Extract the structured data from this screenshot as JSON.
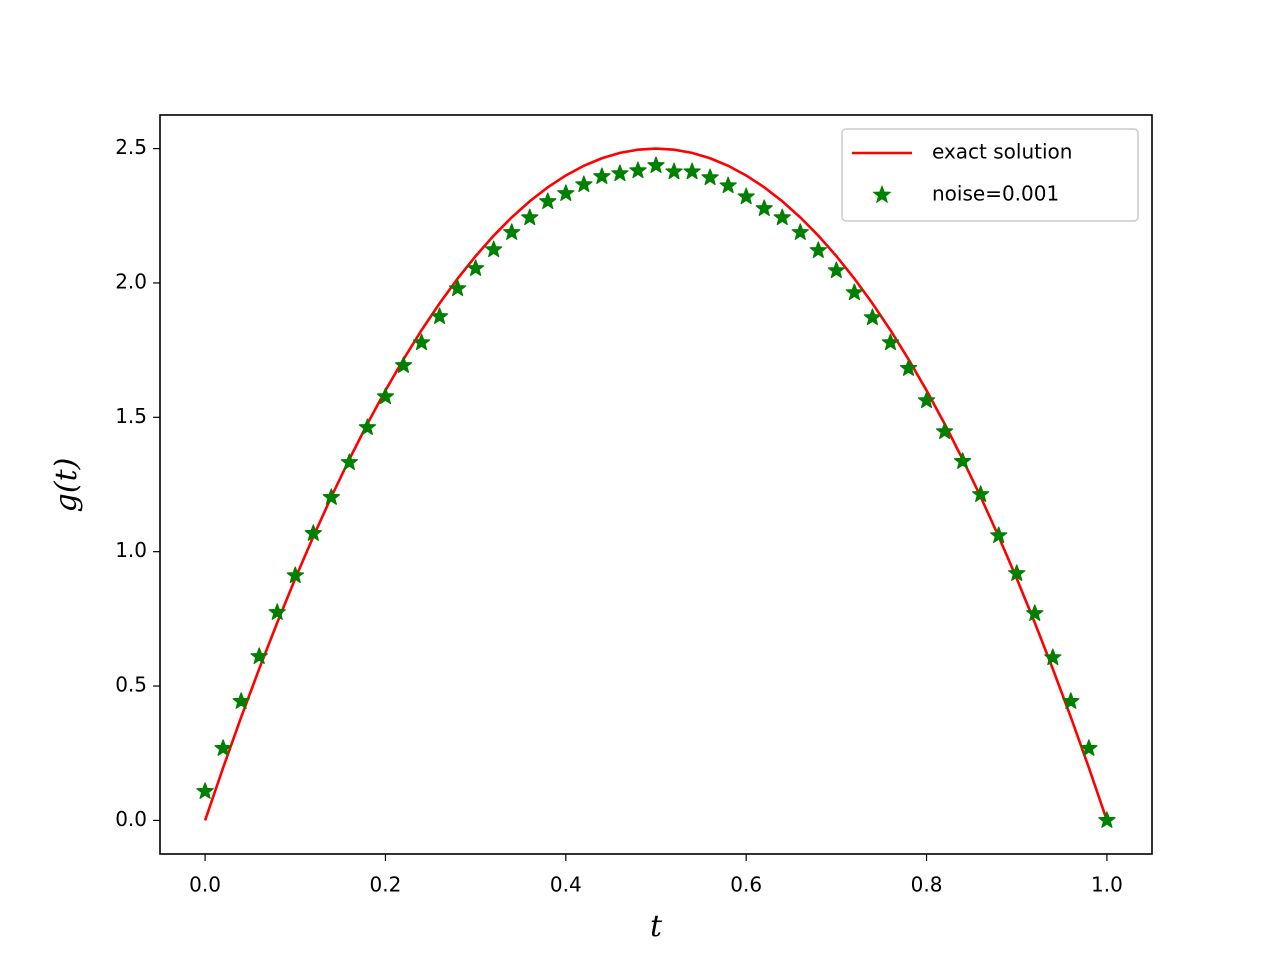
{
  "chart_data": {
    "type": "line",
    "x_label": "t",
    "y_label": "g(t)",
    "x": [
      0,
      0.02,
      0.04,
      0.06,
      0.08,
      0.1,
      0.12,
      0.14,
      0.16,
      0.18,
      0.2,
      0.22,
      0.24,
      0.26,
      0.28,
      0.3,
      0.32,
      0.34,
      0.36,
      0.38,
      0.4,
      0.42,
      0.44,
      0.46,
      0.48,
      0.5,
      0.52,
      0.54,
      0.56,
      0.58,
      0.6,
      0.62,
      0.64,
      0.66,
      0.68,
      0.7,
      0.72,
      0.74,
      0.76,
      0.78,
      0.8,
      0.82,
      0.84,
      0.86,
      0.88,
      0.9,
      0.92,
      0.94,
      0.96,
      0.98,
      1.0
    ],
    "series": [
      {
        "name": "exact solution",
        "color": "#ff0000",
        "style": "line",
        "values": [
          0,
          0.196,
          0.384,
          0.564,
          0.736,
          0.9,
          1.056,
          1.204,
          1.344,
          1.476,
          1.6,
          1.716,
          1.824,
          1.924,
          2.016,
          2.1,
          2.176,
          2.244,
          2.304,
          2.356,
          2.4,
          2.436,
          2.464,
          2.484,
          2.496,
          2.5,
          2.496,
          2.484,
          2.464,
          2.436,
          2.4,
          2.356,
          2.304,
          2.244,
          2.176,
          2.1,
          2.016,
          1.924,
          1.824,
          1.716,
          1.6,
          1.476,
          1.344,
          1.204,
          1.056,
          0.9,
          0.736,
          0.564,
          0.384,
          0.196,
          0
        ]
      },
      {
        "name": "noise=0.001",
        "color": "#008000",
        "style": "star",
        "values": [
          0.108,
          0.268,
          0.443,
          0.61,
          0.774,
          0.911,
          1.068,
          1.202,
          1.332,
          1.462,
          1.577,
          1.693,
          1.778,
          1.875,
          1.979,
          2.054,
          2.124,
          2.188,
          2.243,
          2.303,
          2.333,
          2.366,
          2.396,
          2.407,
          2.418,
          2.437,
          2.414,
          2.414,
          2.392,
          2.362,
          2.321,
          2.277,
          2.243,
          2.188,
          2.121,
          2.046,
          1.964,
          1.871,
          1.778,
          1.682,
          1.562,
          1.447,
          1.336,
          1.213,
          1.06,
          0.919,
          0.77,
          0.606,
          0.443,
          0.268,
          0
        ]
      }
    ],
    "xlim": [
      -0.05,
      1.05
    ],
    "ylim": [
      -0.125,
      2.625
    ],
    "xticks": [
      {
        "value": 0,
        "label": "0.0"
      },
      0.2,
      0.4,
      0.6,
      0.8,
      {
        "value": 1,
        "label": "1.0"
      }
    ],
    "yticks": [
      {
        "value": 0,
        "label": "0.0"
      },
      0.5,
      {
        "value": 1,
        "label": "1.0"
      },
      1.5,
      {
        "value": 2,
        "label": "2.0"
      },
      2.5
    ],
    "grid": false,
    "legend": "upper right"
  }
}
